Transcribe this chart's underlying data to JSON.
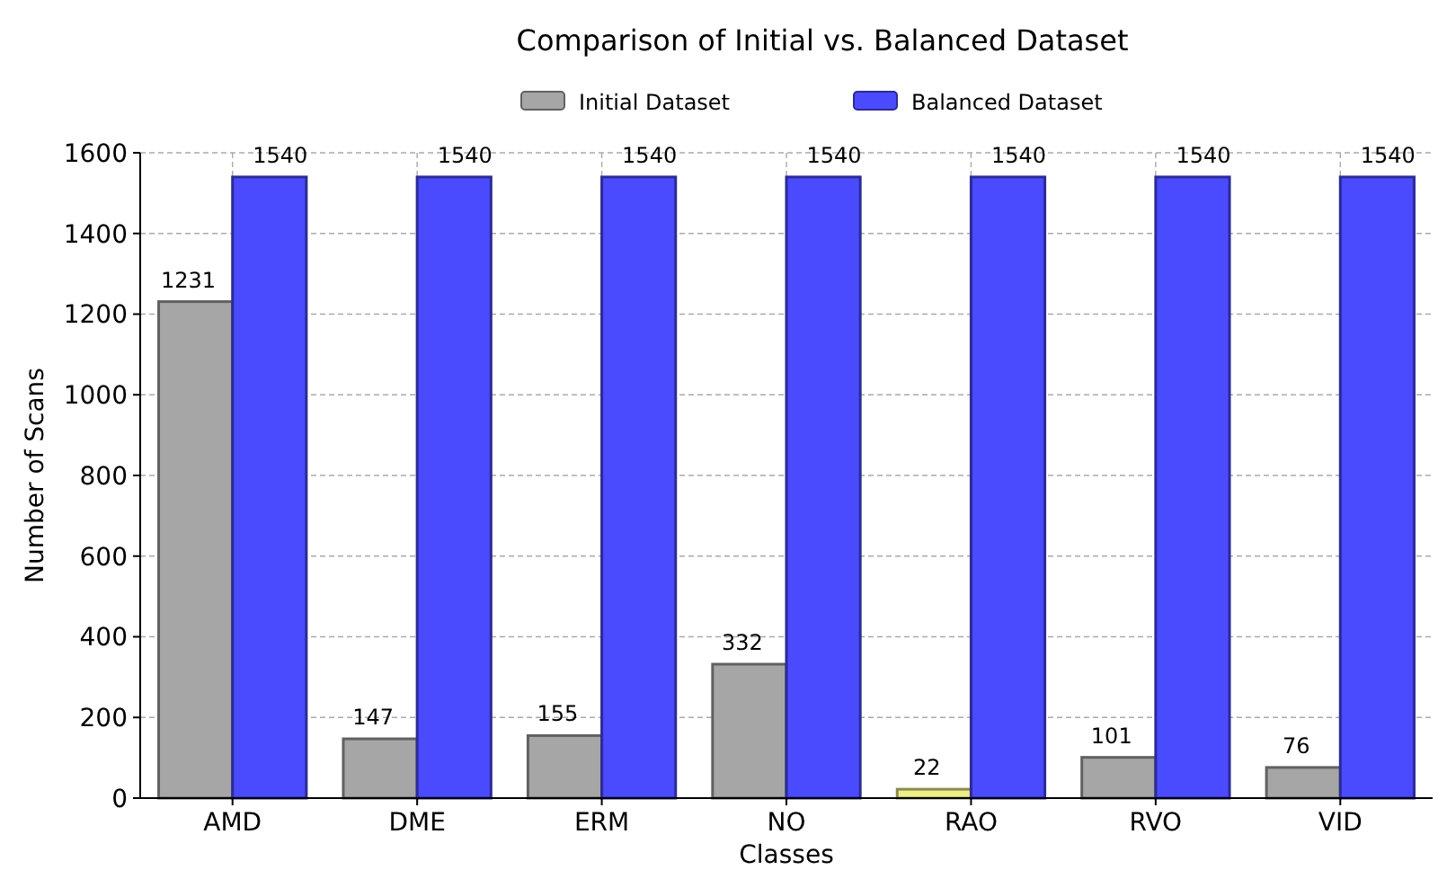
{
  "chart_data": {
    "type": "bar",
    "title": "Comparison of Initial vs. Balanced Dataset",
    "xlabel": "Classes",
    "ylabel": "Number of Scans",
    "categories": [
      "AMD",
      "DME",
      "ERM",
      "NO",
      "RAO",
      "RVO",
      "VID"
    ],
    "series": [
      {
        "name": "Initial Dataset",
        "color": "#a6a6a6",
        "colors": [
          "#a6a6a6",
          "#a6a6a6",
          "#a6a6a6",
          "#a6a6a6",
          "#eeee88",
          "#a6a6a6",
          "#a6a6a6"
        ],
        "values": [
          1231,
          147,
          155,
          332,
          22,
          101,
          76
        ]
      },
      {
        "name": "Balanced Dataset",
        "color": "#4a4aff",
        "values": [
          1540,
          1540,
          1540,
          1540,
          1540,
          1540,
          1540
        ]
      }
    ],
    "ylim": [
      0,
      1600
    ],
    "yticks": [
      0,
      200,
      400,
      600,
      800,
      1000,
      1200,
      1400,
      1600
    ],
    "grid": true,
    "legend": "top",
    "data_labels": true
  }
}
